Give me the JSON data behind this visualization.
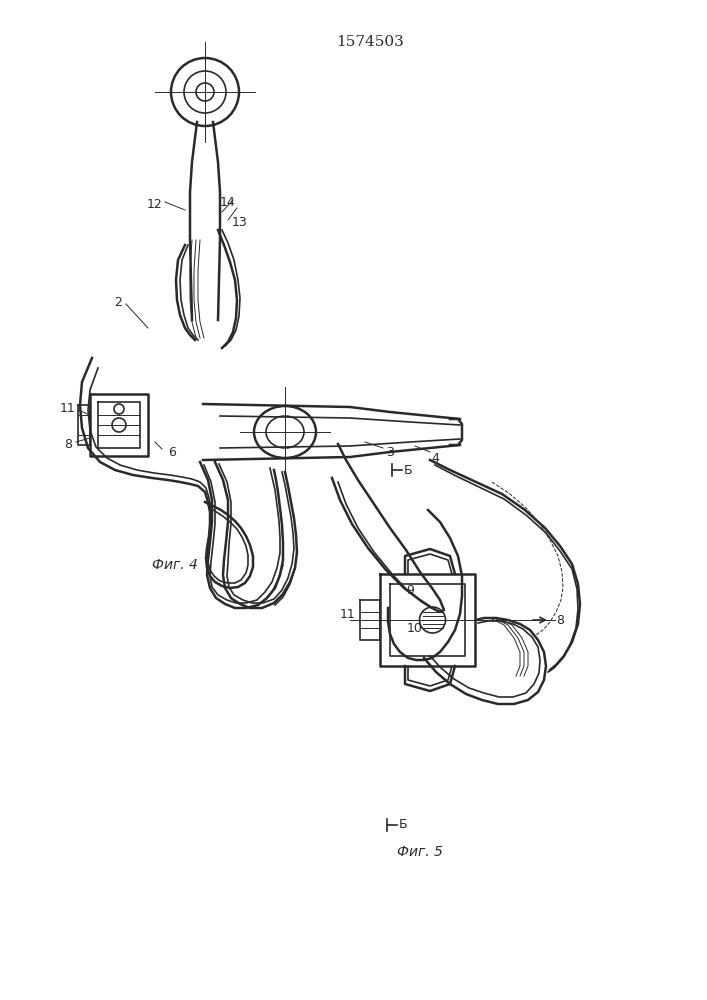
{
  "title": "1574503",
  "bg_color": "#ffffff",
  "line_color": "#2a2a2a",
  "lw_thick": 1.8,
  "lw_med": 1.2,
  "lw_thin": 0.7,
  "fig4_label": "Фиг. 4",
  "fig5_label": "Фиг. 5"
}
